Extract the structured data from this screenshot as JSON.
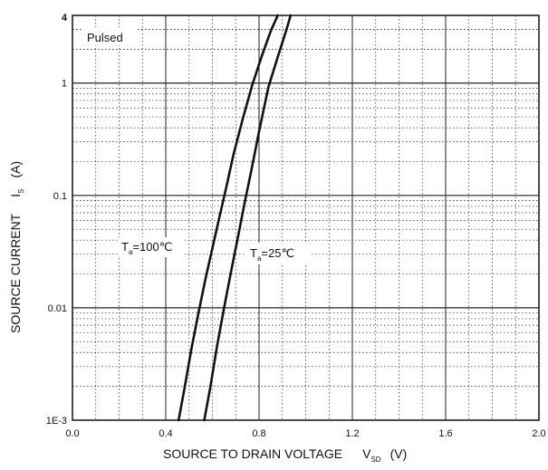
{
  "chart_data": {
    "type": "line",
    "title": "",
    "xlabel": {
      "main": "SOURCE TO DRAIN VOLTAGE",
      "symbol": "V",
      "subscript": "SD",
      "unit": "(V)"
    },
    "ylabel": {
      "main": "SOURCE CURRENT",
      "symbol": "I",
      "subscript": "S",
      "unit": "(A)"
    },
    "xlim": [
      0.0,
      2.0
    ],
    "ylim": [
      0.001,
      4
    ],
    "yscale": "log",
    "grid": true,
    "x_ticks": [
      "0.0",
      "0.4",
      "0.8",
      "1.2",
      "1.6",
      "2.0"
    ],
    "x_tick_values": [
      0.0,
      0.4,
      0.8,
      1.2,
      1.6,
      2.0
    ],
    "y_ticks": [
      "1E-3",
      "0.01",
      "0.1",
      "1",
      "4"
    ],
    "y_tick_values": [
      0.001,
      0.01,
      0.1,
      1,
      4
    ],
    "annotations": [
      {
        "text": "Pulsed"
      }
    ],
    "series": [
      {
        "label": {
          "symbol": "T",
          "subscript": "a",
          "value": "=100℃"
        },
        "x": [
          0.455,
          0.48,
          0.51,
          0.54,
          0.57,
          0.6,
          0.63,
          0.66,
          0.69,
          0.73,
          0.77,
          0.81,
          0.85,
          0.88
        ],
        "y": [
          0.001,
          0.0019,
          0.0043,
          0.009,
          0.018,
          0.034,
          0.064,
          0.12,
          0.23,
          0.48,
          0.95,
          1.7,
          2.9,
          4.0
        ]
      },
      {
        "label": {
          "symbol": "T",
          "subscript": "a",
          "value": "=25℃"
        },
        "x": [
          0.565,
          0.59,
          0.62,
          0.65,
          0.68,
          0.71,
          0.74,
          0.77,
          0.8,
          0.84,
          0.88,
          0.92,
          0.935
        ],
        "y": [
          0.001,
          0.0019,
          0.0046,
          0.01,
          0.021,
          0.043,
          0.09,
          0.18,
          0.37,
          0.92,
          1.7,
          3.1,
          4.0
        ]
      }
    ]
  }
}
